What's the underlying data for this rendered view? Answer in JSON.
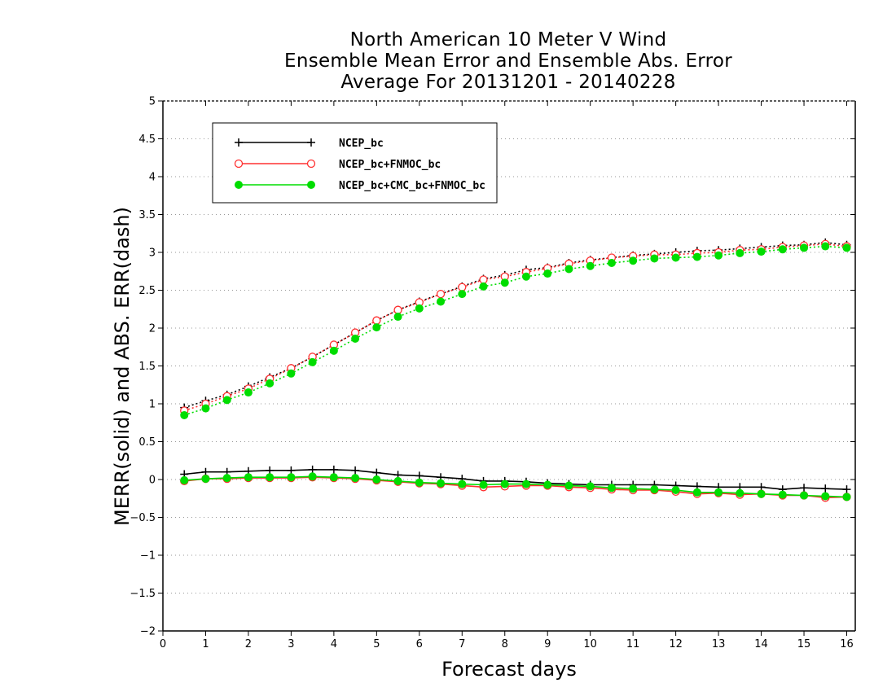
{
  "chart_data": {
    "type": "line",
    "title_lines": [
      "North American 10 Meter V Wind",
      "Ensemble Mean Error and Ensemble Abs. Error",
      "Average For 20131201 - 20140228"
    ],
    "xlabel": "Forecast days",
    "ylabel": "MERR(solid) and ABS. ERR(dash)",
    "xlim": [
      0,
      16.2
    ],
    "ylim": [
      -2,
      5
    ],
    "x_ticks": [
      0,
      1,
      2,
      3,
      4,
      5,
      6,
      7,
      8,
      9,
      10,
      11,
      12,
      13,
      14,
      15,
      16
    ],
    "x_tick_labels": [
      "0",
      "1",
      "2",
      "3",
      "4",
      "5",
      "6",
      "7",
      "8",
      "9",
      "10",
      "11",
      "12",
      "13",
      "14",
      "15",
      "16"
    ],
    "y_ticks": [
      -2,
      -1.5,
      -1,
      -0.5,
      0,
      0.5,
      1,
      1.5,
      2,
      2.5,
      3,
      3.5,
      4,
      4.5,
      5
    ],
    "y_tick_labels": [
      "−2",
      "−1.5",
      "−1",
      "−0.5",
      "0",
      "0.5",
      "1",
      "1.5",
      "2",
      "2.5",
      "3",
      "3.5",
      "4",
      "4.5",
      "5"
    ],
    "grid": "horizontal dotted",
    "legend_position": "top-left",
    "x": [
      0.5,
      1,
      1.5,
      2,
      2.5,
      3,
      3.5,
      4,
      4.5,
      5,
      5.5,
      6,
      6.5,
      7,
      7.5,
      8,
      8.5,
      9,
      9.5,
      10,
      10.5,
      11,
      11.5,
      12,
      12.5,
      13,
      13.5,
      14,
      14.5,
      15,
      15.5,
      16
    ],
    "series": [
      {
        "name": "NCEP_bc",
        "color": "#000000",
        "marker": "plus",
        "merr": [
          0.07,
          0.1,
          0.1,
          0.11,
          0.12,
          0.12,
          0.13,
          0.13,
          0.12,
          0.09,
          0.06,
          0.05,
          0.03,
          0.01,
          -0.02,
          -0.02,
          -0.03,
          -0.05,
          -0.06,
          -0.07,
          -0.07,
          -0.07,
          -0.07,
          -0.08,
          -0.09,
          -0.1,
          -0.1,
          -0.1,
          -0.13,
          -0.11,
          -0.12,
          -0.13
        ],
        "abs_err": [
          0.95,
          1.04,
          1.12,
          1.23,
          1.35,
          1.47,
          1.62,
          1.78,
          1.94,
          2.1,
          2.24,
          2.35,
          2.45,
          2.55,
          2.65,
          2.7,
          2.77,
          2.8,
          2.86,
          2.9,
          2.93,
          2.96,
          2.98,
          3.0,
          3.02,
          3.03,
          3.05,
          3.07,
          3.09,
          3.1,
          3.13,
          3.1
        ]
      },
      {
        "name": "NCEP_bc+FNMOC_bc",
        "color": "#ff3030",
        "marker": "open-circle",
        "merr": [
          -0.02,
          0.01,
          0.01,
          0.02,
          0.02,
          0.02,
          0.03,
          0.02,
          0.01,
          -0.01,
          -0.03,
          -0.05,
          -0.06,
          -0.08,
          -0.1,
          -0.09,
          -0.08,
          -0.08,
          -0.1,
          -0.11,
          -0.13,
          -0.14,
          -0.14,
          -0.16,
          -0.19,
          -0.18,
          -0.2,
          -0.19,
          -0.21,
          -0.21,
          -0.24,
          -0.23
        ],
        "abs_err": [
          0.91,
          1.0,
          1.1,
          1.2,
          1.33,
          1.47,
          1.62,
          1.78,
          1.94,
          2.1,
          2.24,
          2.34,
          2.45,
          2.54,
          2.64,
          2.68,
          2.74,
          2.79,
          2.85,
          2.89,
          2.93,
          2.95,
          2.97,
          2.97,
          2.99,
          3.0,
          3.03,
          3.04,
          3.07,
          3.09,
          3.11,
          3.08
        ]
      },
      {
        "name": "NCEP_bc+CMC_bc+FNMOC_bc",
        "color": "#00dd00",
        "marker": "filled-circle",
        "merr": [
          -0.01,
          0.01,
          0.02,
          0.03,
          0.03,
          0.03,
          0.04,
          0.03,
          0.02,
          0.0,
          -0.02,
          -0.04,
          -0.05,
          -0.06,
          -0.07,
          -0.06,
          -0.06,
          -0.07,
          -0.08,
          -0.09,
          -0.11,
          -0.12,
          -0.13,
          -0.14,
          -0.17,
          -0.17,
          -0.18,
          -0.19,
          -0.2,
          -0.21,
          -0.22,
          -0.23
        ],
        "abs_err": [
          0.85,
          0.94,
          1.05,
          1.15,
          1.27,
          1.4,
          1.55,
          1.7,
          1.86,
          2.01,
          2.15,
          2.26,
          2.35,
          2.45,
          2.55,
          2.6,
          2.68,
          2.72,
          2.78,
          2.82,
          2.86,
          2.89,
          2.92,
          2.93,
          2.94,
          2.96,
          2.99,
          3.01,
          3.04,
          3.06,
          3.08,
          3.06
        ]
      }
    ]
  }
}
